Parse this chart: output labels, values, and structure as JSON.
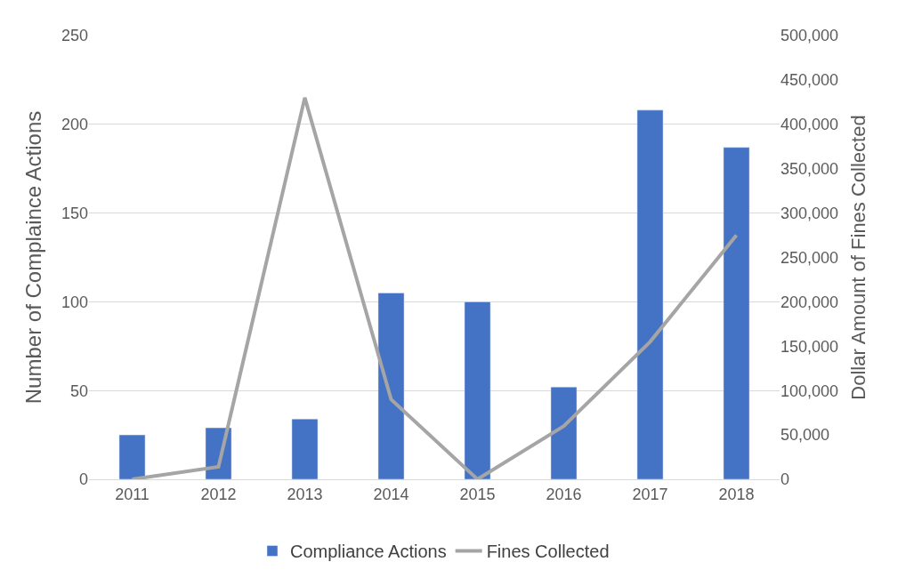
{
  "chart_data": {
    "type": "bar",
    "categories": [
      "2011",
      "2012",
      "2013",
      "2014",
      "2015",
      "2016",
      "2017",
      "2018"
    ],
    "series": [
      {
        "name": "Compliance Actions",
        "color": "#4472c4",
        "values": [
          25,
          29,
          34,
          105,
          100,
          52,
          208,
          187
        ]
      },
      {
        "name": "Fines Collected",
        "type": "line",
        "axis": "y2",
        "color": "#a5a5a5",
        "values": [
          0,
          14000,
          430000,
          90000,
          0,
          60000,
          155000,
          275000
        ]
      }
    ],
    "ylabel": "Number of Complaince Actions",
    "y2label": "Dollar Amount of Fines Collected",
    "ylim": [
      0,
      250
    ],
    "yticks": [
      0,
      50,
      100,
      150,
      200,
      250
    ],
    "y2lim": [
      0,
      500000
    ],
    "y2ticks": [
      {
        "value": 0,
        "label": "0"
      },
      {
        "value": 50000,
        "label": "50,000"
      },
      {
        "value": 100000,
        "label": "100,000"
      },
      {
        "value": 150000,
        "label": "150,000"
      },
      {
        "value": 200000,
        "label": "200,000"
      },
      {
        "value": 250000,
        "label": "250,000"
      },
      {
        "value": 300000,
        "label": "300,000"
      },
      {
        "value": 350000,
        "label": "350,000"
      },
      {
        "value": 400000,
        "label": "400,000"
      },
      {
        "value": 450000,
        "label": "450,000"
      },
      {
        "value": 500000,
        "label": "500,000"
      }
    ],
    "grid": "y",
    "legend": "bottom",
    "marker": "none",
    "line_style": "solid"
  }
}
